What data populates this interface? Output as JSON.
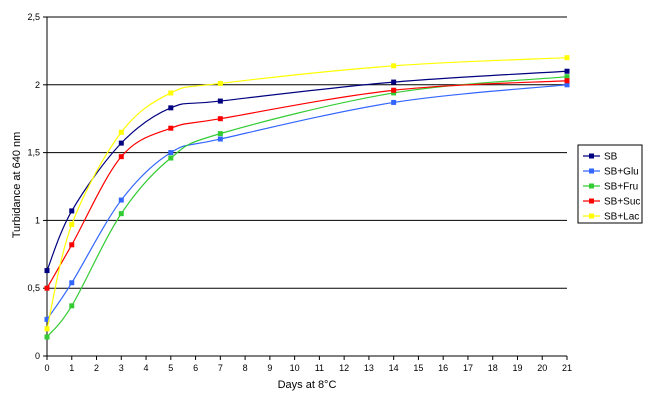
{
  "chart_data": {
    "type": "line",
    "xlabel": "Days at 8°C",
    "ylabel": "Turbidance at 640 nm",
    "xlim": [
      0,
      21
    ],
    "ylim": [
      0,
      2.5
    ],
    "x_ticks": [
      "0",
      "1",
      "2",
      "3",
      "4",
      "5",
      "6",
      "7",
      "8",
      "9",
      "10",
      "11",
      "12",
      "13",
      "14",
      "15",
      "16",
      "17",
      "18",
      "19",
      "20",
      "21"
    ],
    "y_ticks": [
      "0",
      "0,5",
      "1",
      "1,5",
      "2",
      "2,5"
    ],
    "y_tick_values": [
      0,
      0.5,
      1,
      1.5,
      2,
      2.5
    ],
    "grid": "horizontal major",
    "legend_position": "right",
    "series": [
      {
        "name": "SB",
        "color": "#000080",
        "x": [
          0,
          1,
          3,
          5,
          7,
          14,
          21
        ],
        "y": [
          0.63,
          1.07,
          1.57,
          1.83,
          1.88,
          2.02,
          2.1
        ]
      },
      {
        "name": "SB+Glu",
        "color": "#3366ff",
        "x": [
          0,
          1,
          3,
          5,
          7,
          14,
          21
        ],
        "y": [
          0.27,
          0.54,
          1.15,
          1.5,
          1.6,
          1.87,
          2.0
        ]
      },
      {
        "name": "SB+Fru",
        "color": "#33cc33",
        "x": [
          0,
          1,
          3,
          5,
          7,
          14,
          21
        ],
        "y": [
          0.14,
          0.37,
          1.05,
          1.46,
          1.64,
          1.94,
          2.06
        ]
      },
      {
        "name": "SB+Suc",
        "color": "#ff0000",
        "x": [
          0,
          1,
          3,
          5,
          7,
          14,
          21
        ],
        "y": [
          0.5,
          0.82,
          1.47,
          1.68,
          1.75,
          1.96,
          2.03
        ]
      },
      {
        "name": "SB+Lac",
        "color": "#ffff00",
        "x": [
          0,
          1,
          3,
          5,
          7,
          14,
          21
        ],
        "y": [
          0.2,
          0.97,
          1.65,
          1.94,
          2.01,
          2.14,
          2.2
        ]
      }
    ]
  }
}
